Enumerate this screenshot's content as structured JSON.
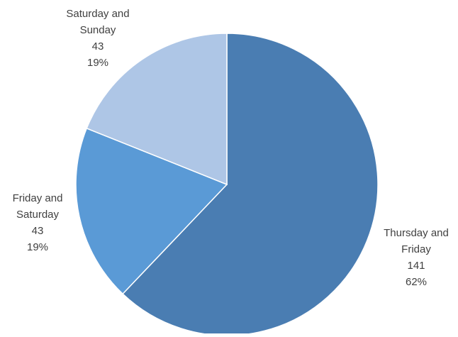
{
  "chart_data": {
    "type": "pie",
    "title": "",
    "start_angle_deg": 0,
    "direction": "clockwise",
    "slices": [
      {
        "label": "Thursday and Friday",
        "label_lines": [
          "Thursday and",
          "Friday"
        ],
        "value": 141,
        "percent": "62%",
        "color": "#4a7db2"
      },
      {
        "label": "Friday and Saturday",
        "label_lines": [
          "Friday and",
          "Saturday"
        ],
        "value": 43,
        "percent": "19%",
        "color": "#5a9ad6"
      },
      {
        "label": "Saturday and Sunday",
        "label_lines": [
          "Saturday and",
          "Sunday"
        ],
        "value": 43,
        "percent": "19%",
        "color": "#aec6e6"
      }
    ],
    "data_labels": "category, value, percent",
    "legend": "none",
    "slice_border_color": "#ffffff"
  }
}
